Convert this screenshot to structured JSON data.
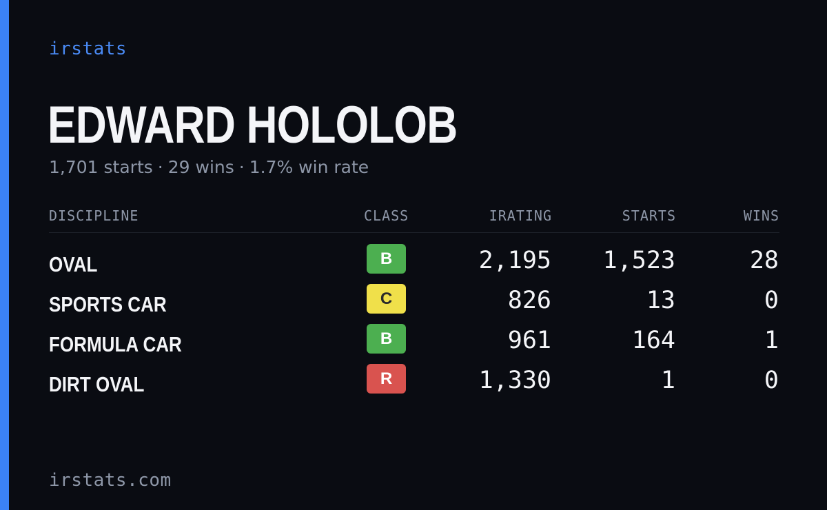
{
  "brand": "irstats",
  "accent_color": "#3b82f6",
  "driver": {
    "name": "EDWARD HOLOLOB"
  },
  "summary": {
    "starts": "1,701 starts",
    "wins": "29 wins",
    "win_rate": "1.7% win rate",
    "separator": "·"
  },
  "table": {
    "headers": {
      "discipline": "DISCIPLINE",
      "class": "CLASS",
      "irating": "IRATING",
      "starts": "STARTS",
      "wins": "WINS"
    },
    "rows": [
      {
        "discipline": "OVAL",
        "class": "B",
        "class_bg": "#4caf50",
        "class_fg": "#ffffff",
        "irating": "2,195",
        "starts": "1,523",
        "wins": "28"
      },
      {
        "discipline": "SPORTS CAR",
        "class": "C",
        "class_bg": "#f0e04a",
        "class_fg": "#2a2a2a",
        "irating": "826",
        "starts": "13",
        "wins": "0"
      },
      {
        "discipline": "FORMULA CAR",
        "class": "B",
        "class_bg": "#4caf50",
        "class_fg": "#ffffff",
        "irating": "961",
        "starts": "164",
        "wins": "1"
      },
      {
        "discipline": "DIRT OVAL",
        "class": "R",
        "class_bg": "#d9534f",
        "class_fg": "#ffffff",
        "irating": "1,330",
        "starts": "1",
        "wins": "0"
      }
    ]
  },
  "footer": "irstats.com"
}
